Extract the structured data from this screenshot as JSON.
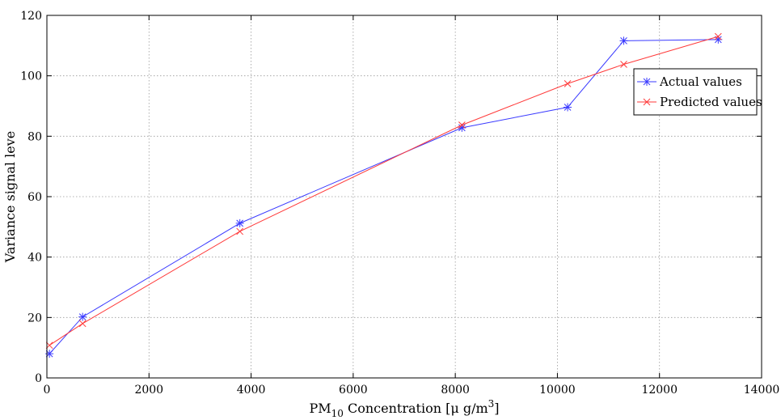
{
  "chart_data": {
    "type": "line",
    "title": "",
    "xlabel": "PM10 Concentration [μ g/m3]",
    "xlabel_parts": {
      "main": "PM",
      "sub": "10",
      "rest": " Concentration [μ g/m",
      "sup": "3",
      "end": "]"
    },
    "ylabel": "Variance signal leve",
    "xlim": [
      0,
      14000
    ],
    "ylim": [
      0,
      120
    ],
    "xticks": [
      0,
      2000,
      4000,
      6000,
      8000,
      10000,
      12000,
      14000
    ],
    "yticks": [
      0,
      20,
      40,
      60,
      80,
      100,
      120
    ],
    "grid": true,
    "legend_position": "top-right",
    "series": [
      {
        "name": "Actual values",
        "color": "#3a3aff",
        "marker": "asterisk",
        "x": [
          50,
          700,
          3780,
          8130,
          10200,
          11300,
          13150
        ],
        "y": [
          8,
          20.2,
          51.2,
          82.8,
          89.6,
          111.6,
          112
        ]
      },
      {
        "name": "Predicted values",
        "color": "#ff3a3a",
        "marker": "x",
        "x": [
          50,
          700,
          3780,
          8130,
          10200,
          11300,
          13150
        ],
        "y": [
          10.8,
          18,
          48.5,
          83.7,
          97.4,
          103.8,
          113
        ]
      }
    ]
  }
}
